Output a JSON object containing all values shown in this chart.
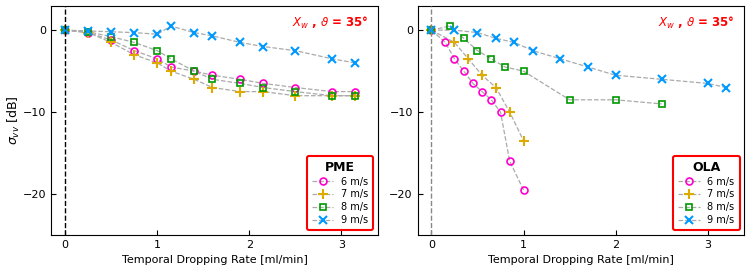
{
  "ylabel": "$\\sigma_{vv}$ [dB]",
  "xlabel": "Temporal Dropping Rate [ml/min]",
  "xlim": [
    -0.15,
    3.4
  ],
  "ylim": [
    -25,
    3
  ],
  "yticks": [
    0,
    -10,
    -20
  ],
  "xticks": [
    0,
    1,
    2,
    3
  ],
  "colors": {
    "6": "#ff00cc",
    "7": "#ddaa00",
    "8": "#009900",
    "9": "#0099ff"
  },
  "PME": {
    "6": {
      "x": [
        0.0,
        0.25,
        0.5,
        0.75,
        1.0,
        1.15,
        1.4,
        1.6,
        1.9,
        2.15,
        2.5,
        2.9,
        3.15
      ],
      "y": [
        0.0,
        -0.3,
        -1.2,
        -2.5,
        -3.5,
        -4.5,
        -5.0,
        -5.5,
        -6.0,
        -6.5,
        -7.0,
        -7.5,
        -7.5
      ]
    },
    "7": {
      "x": [
        0.0,
        0.25,
        0.5,
        0.75,
        1.0,
        1.15,
        1.4,
        1.6,
        1.9,
        2.15,
        2.5,
        2.9,
        3.15
      ],
      "y": [
        0.0,
        -0.3,
        -1.5,
        -3.0,
        -4.0,
        -5.0,
        -6.0,
        -7.0,
        -7.5,
        -7.5,
        -8.0,
        -8.0,
        -8.0
      ]
    },
    "8": {
      "x": [
        0.0,
        0.25,
        0.5,
        0.75,
        1.0,
        1.15,
        1.4,
        1.6,
        1.9,
        2.15,
        2.5,
        2.9,
        3.15
      ],
      "y": [
        0.0,
        -0.2,
        -0.8,
        -1.5,
        -2.5,
        -3.5,
        -5.0,
        -6.0,
        -6.5,
        -7.0,
        -7.5,
        -8.0,
        -8.0
      ]
    },
    "9": {
      "x": [
        0.0,
        0.25,
        0.5,
        0.75,
        1.0,
        1.15,
        1.4,
        1.6,
        1.9,
        2.15,
        2.5,
        2.9,
        3.15
      ],
      "y": [
        0.0,
        -0.1,
        -0.2,
        -0.3,
        -0.5,
        0.5,
        -0.3,
        -0.7,
        -1.5,
        -2.0,
        -2.5,
        -3.5,
        -4.0
      ]
    }
  },
  "OLA": {
    "6": {
      "x": [
        0.0,
        0.15,
        0.25,
        0.35,
        0.45,
        0.55,
        0.65,
        0.75,
        0.85,
        1.0
      ],
      "y": [
        0.0,
        -1.5,
        -3.5,
        -5.0,
        -6.5,
        -7.5,
        -8.5,
        -10.0,
        -16.0,
        -19.5
      ]
    },
    "7": {
      "x": [
        0.0,
        0.25,
        0.4,
        0.55,
        0.7,
        0.85,
        1.0
      ],
      "y": [
        0.0,
        -1.5,
        -3.5,
        -5.5,
        -7.0,
        -10.0,
        -13.5
      ]
    },
    "8": {
      "x": [
        0.0,
        0.2,
        0.35,
        0.5,
        0.65,
        0.8,
        1.0,
        1.5,
        2.0,
        2.5
      ],
      "y": [
        0.0,
        0.5,
        -1.0,
        -2.5,
        -3.5,
        -4.5,
        -5.0,
        -8.5,
        -8.5,
        -9.0
      ]
    },
    "9": {
      "x": [
        0.0,
        0.25,
        0.5,
        0.7,
        0.9,
        1.1,
        1.4,
        1.7,
        2.0,
        2.5,
        3.0,
        3.2
      ],
      "y": [
        0.0,
        0.0,
        -0.3,
        -1.0,
        -1.5,
        -2.5,
        -3.5,
        -4.5,
        -5.5,
        -6.0,
        -6.5,
        -7.0
      ]
    }
  }
}
